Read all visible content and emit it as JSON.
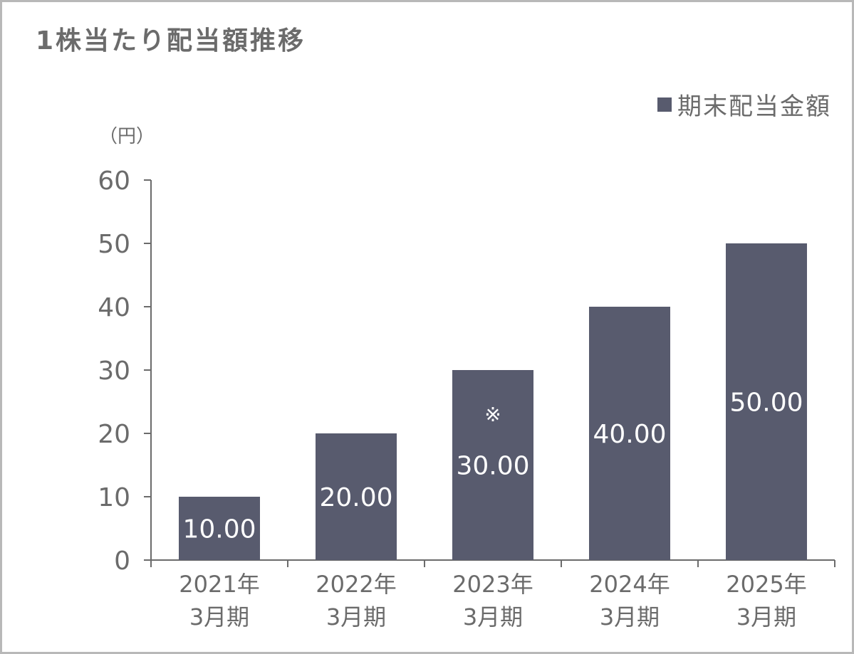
{
  "colors": {
    "bar": "#585b6e",
    "axis": "#6b6b6b",
    "text": "#6b6b6b",
    "label": "#ffffff",
    "border": "#b8b8b8"
  },
  "chart_data": {
    "type": "bar",
    "title": "1株当たり配当額推移",
    "unit_label": "（円）",
    "categories": [
      [
        "2021年",
        "3月期"
      ],
      [
        "2022年",
        "3月期"
      ],
      [
        "2023年",
        "3月期"
      ],
      [
        "2024年",
        "3月期"
      ],
      [
        "2025年",
        "3月期"
      ]
    ],
    "series": [
      {
        "name": "期末配当金額",
        "values": [
          10,
          20,
          30,
          40,
          50
        ],
        "labels": [
          "10.00",
          "20.00",
          "30.00",
          "40.00",
          "50.00"
        ]
      }
    ],
    "annotations": [
      {
        "category_index": 2,
        "text": "※"
      }
    ],
    "ylim": [
      0,
      60
    ],
    "yticks": [
      0,
      10,
      20,
      30,
      40,
      50,
      60
    ],
    "legend": "top-right",
    "grid": false
  }
}
